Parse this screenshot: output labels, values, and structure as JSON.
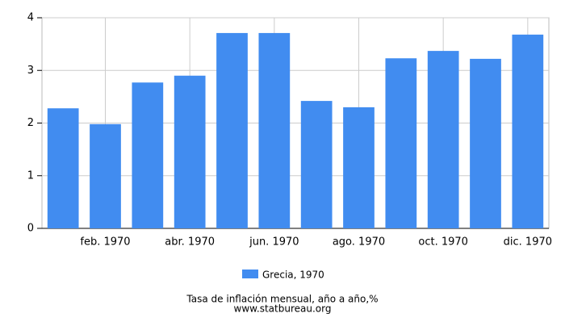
{
  "chart_data": {
    "type": "bar",
    "title": "Tasa de inflación mensual, año a año,%",
    "source": "www.statbureau.org",
    "categories": [
      null,
      "feb. 1970",
      null,
      "abr. 1970",
      null,
      "jun. 1970",
      null,
      "ago. 1970",
      null,
      "oct. 1970",
      null,
      "dic. 1970"
    ],
    "series": [
      {
        "name": "Grecia, 1970",
        "color": "#418cf0",
        "values": [
          2.28,
          1.98,
          2.77,
          2.9,
          3.71,
          3.71,
          2.42,
          2.3,
          3.23,
          3.37,
          3.22,
          3.68
        ]
      }
    ],
    "ylim": [
      0,
      4
    ],
    "yticks": [
      0,
      1,
      2,
      3,
      4
    ],
    "grid": true
  }
}
